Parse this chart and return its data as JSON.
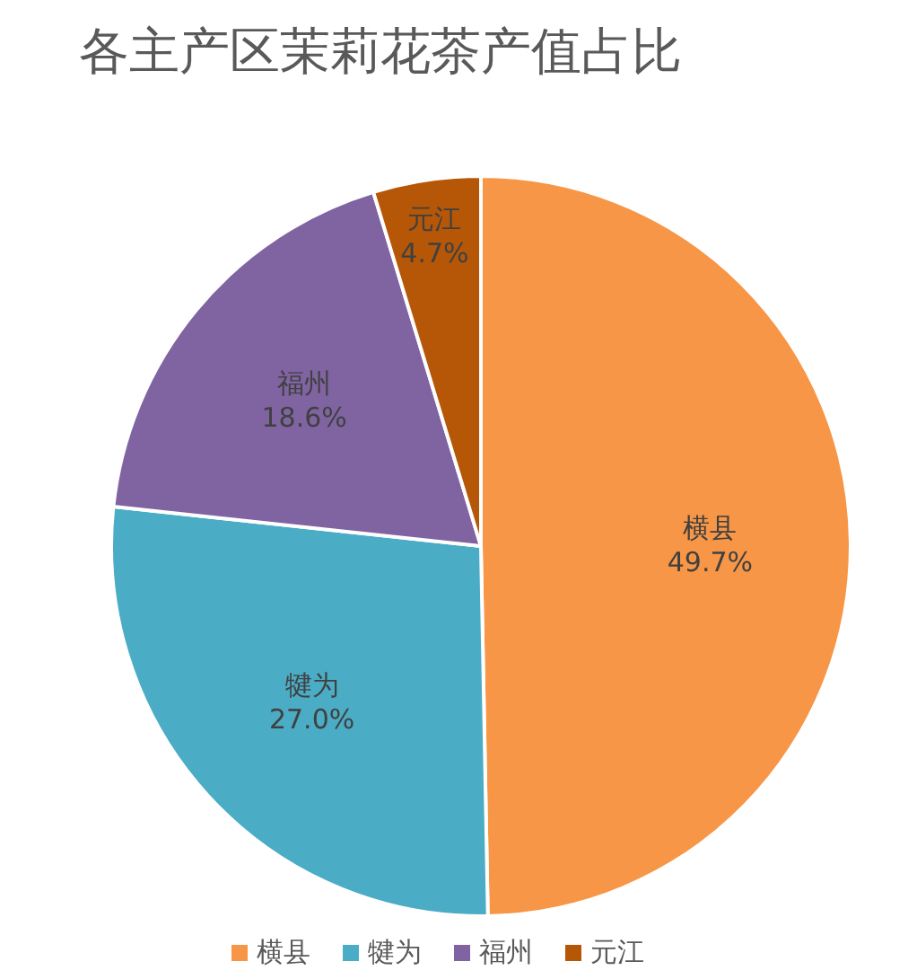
{
  "chart_data": {
    "type": "pie",
    "title": "各主产区茉莉花茶产值占比",
    "categories": [
      "横县",
      "犍为",
      "福州",
      "元江"
    ],
    "values": [
      49.7,
      27.0,
      18.6,
      4.7
    ],
    "value_labels": [
      "49.7%",
      "27.0%",
      "18.6%",
      "4.7%"
    ],
    "colors": [
      "#f79646",
      "#4bacc6",
      "#8064a2",
      "#b65708"
    ],
    "legend": "bottom"
  }
}
